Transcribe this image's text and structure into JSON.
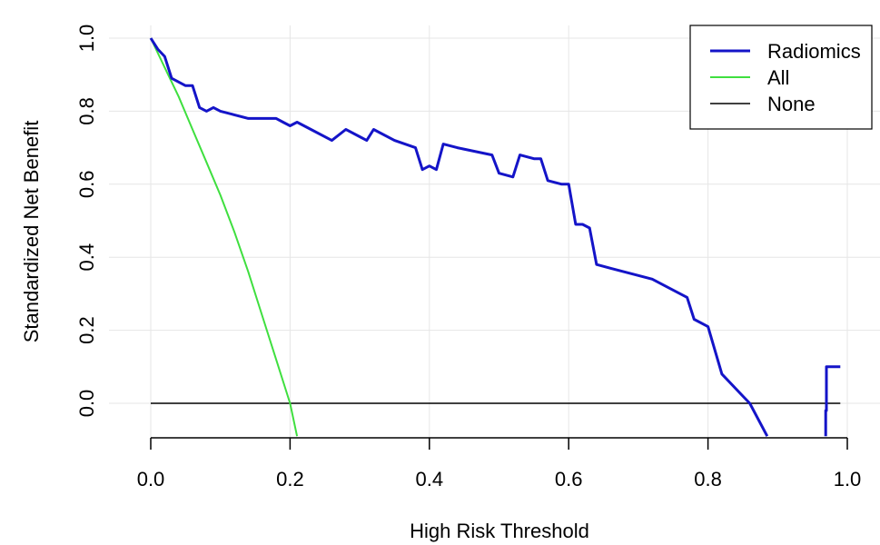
{
  "chart_data": {
    "type": "line",
    "title": "",
    "xlabel": "High Risk Threshold",
    "ylabel": "Standardized Net Benefit",
    "xlim": [
      0.0,
      1.0
    ],
    "ylim": [
      -0.1,
      1.0
    ],
    "x_ticks": [
      "0.0",
      "0.2",
      "0.4",
      "0.6",
      "0.8",
      "1.0"
    ],
    "y_ticks": [
      "0.0",
      "0.2",
      "0.4",
      "0.6",
      "0.8",
      "1.0"
    ],
    "grid": true,
    "legend_position": "top-right",
    "series": [
      {
        "name": "Radiomics",
        "color": "#1414c8",
        "x": [
          0.0,
          0.01,
          0.02,
          0.03,
          0.05,
          0.06,
          0.07,
          0.08,
          0.09,
          0.1,
          0.12,
          0.14,
          0.18,
          0.19,
          0.2,
          0.21,
          0.23,
          0.26,
          0.28,
          0.3,
          0.31,
          0.32,
          0.35,
          0.38,
          0.39,
          0.4,
          0.41,
          0.42,
          0.44,
          0.49,
          0.5,
          0.52,
          0.53,
          0.55,
          0.56,
          0.57,
          0.59,
          0.6,
          0.61,
          0.62,
          0.63,
          0.64,
          0.66,
          0.7,
          0.72,
          0.75,
          0.77,
          0.78,
          0.8,
          0.82,
          0.85,
          0.86,
          0.885
        ],
        "y": [
          1.0,
          0.97,
          0.95,
          0.89,
          0.87,
          0.87,
          0.81,
          0.8,
          0.81,
          0.8,
          0.79,
          0.78,
          0.78,
          0.77,
          0.76,
          0.77,
          0.75,
          0.72,
          0.75,
          0.73,
          0.72,
          0.75,
          0.72,
          0.7,
          0.64,
          0.65,
          0.64,
          0.71,
          0.7,
          0.68,
          0.63,
          0.62,
          0.68,
          0.67,
          0.67,
          0.61,
          0.6,
          0.6,
          0.49,
          0.49,
          0.48,
          0.38,
          0.37,
          0.35,
          0.34,
          0.31,
          0.29,
          0.23,
          0.21,
          0.08,
          0.02,
          0.0,
          -0.09
        ]
      },
      {
        "name": "Radiomics",
        "color": "#1414c8",
        "x": [
          0.969,
          0.969,
          0.97,
          0.97,
          0.99
        ],
        "y": [
          -0.09,
          -0.02,
          -0.02,
          0.1,
          0.1
        ]
      },
      {
        "name": "All",
        "color": "#3fdf3f",
        "x": [
          0.0,
          0.02,
          0.04,
          0.06,
          0.08,
          0.1,
          0.12,
          0.14,
          0.16,
          0.18,
          0.2,
          0.21
        ],
        "y": [
          1.0,
          0.92,
          0.84,
          0.75,
          0.66,
          0.57,
          0.47,
          0.36,
          0.24,
          0.12,
          0.0,
          -0.09
        ]
      },
      {
        "name": "None",
        "color": "#000000",
        "x": [
          0.0,
          0.99
        ],
        "y": [
          0.0,
          0.0
        ]
      }
    ],
    "legend": [
      "Radiomics",
      "All",
      "None"
    ]
  }
}
